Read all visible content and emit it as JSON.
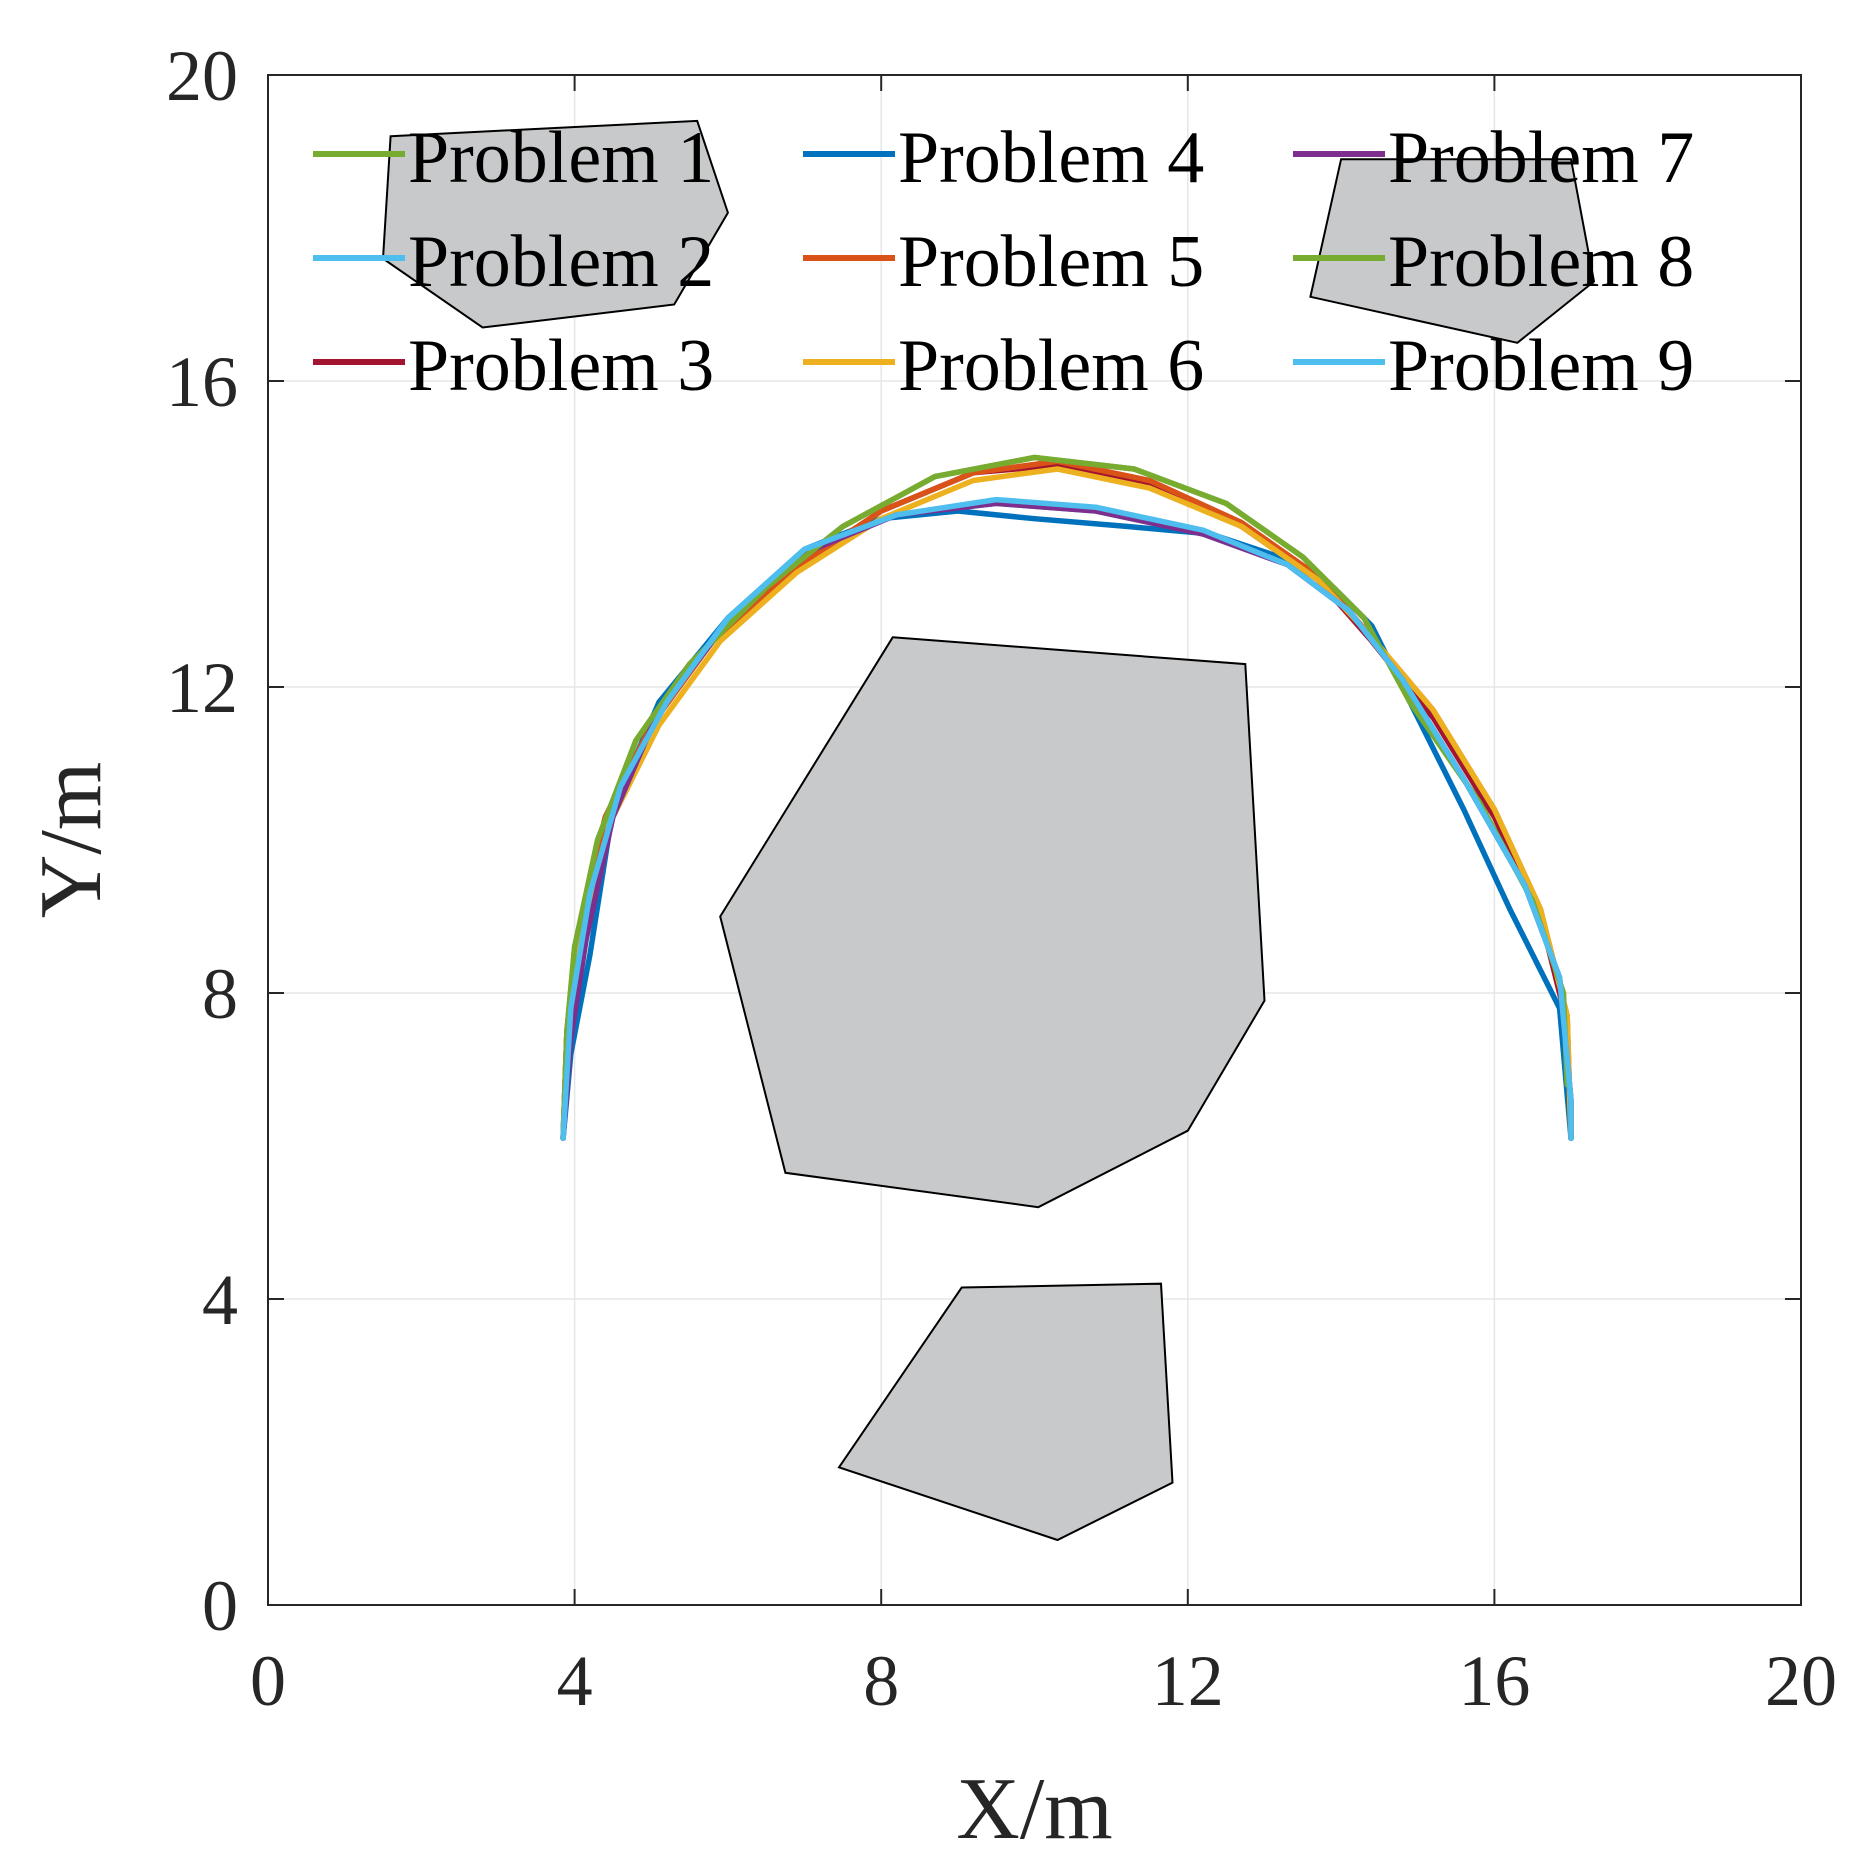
{
  "chart_data": {
    "type": "line",
    "xlabel": "X/m",
    "ylabel": "Y/m",
    "xlim": [
      0,
      20
    ],
    "ylim": [
      0,
      20
    ],
    "xticks": [
      "0",
      "4",
      "8",
      "12",
      "16",
      "20"
    ],
    "yticks": [
      "0",
      "4",
      "8",
      "12",
      "16",
      "20"
    ],
    "grid": true,
    "legend_placement": "top, 3 columns",
    "obstacles": [
      {
        "name": "obstacle-top-left",
        "color": "#c8c9ca",
        "points": [
          [
            1.6,
            19.2
          ],
          [
            5.6,
            19.4
          ],
          [
            6.0,
            18.2
          ],
          [
            5.3,
            17.0
          ],
          [
            2.8,
            16.7
          ],
          [
            1.5,
            17.6
          ]
        ]
      },
      {
        "name": "obstacle-top-right",
        "color": "#c8c9ca",
        "points": [
          [
            14.0,
            18.9
          ],
          [
            17.0,
            18.9
          ],
          [
            17.3,
            17.3
          ],
          [
            16.3,
            16.5
          ],
          [
            13.6,
            17.1
          ]
        ]
      },
      {
        "name": "obstacle-center",
        "color": "#c8c9ca",
        "points": [
          [
            8.15,
            12.65
          ],
          [
            12.75,
            12.3
          ],
          [
            13.0,
            7.9
          ],
          [
            12.0,
            6.2
          ],
          [
            10.05,
            5.2
          ],
          [
            6.75,
            5.65
          ],
          [
            5.9,
            9.0
          ]
        ]
      },
      {
        "name": "obstacle-bottom",
        "color": "#c8c9ca",
        "points": [
          [
            9.05,
            4.15
          ],
          [
            11.65,
            4.2
          ],
          [
            11.8,
            1.6
          ],
          [
            10.3,
            0.85
          ],
          [
            7.45,
            1.8
          ]
        ]
      }
    ],
    "series": [
      {
        "name": "Problem 1",
        "color": "#77ac30",
        "points": [
          [
            3.85,
            6.1
          ],
          [
            3.9,
            7.5
          ],
          [
            4.0,
            8.6
          ],
          [
            4.3,
            10.0
          ],
          [
            4.8,
            11.3
          ],
          [
            5.5,
            12.3
          ],
          [
            6.5,
            13.3
          ],
          [
            7.5,
            14.1
          ],
          [
            8.7,
            14.75
          ],
          [
            10.0,
            15.0
          ],
          [
            11.3,
            14.85
          ],
          [
            12.5,
            14.4
          ],
          [
            13.5,
            13.7
          ],
          [
            14.3,
            12.9
          ],
          [
            14.9,
            11.8
          ],
          [
            15.8,
            10.5
          ],
          [
            16.5,
            9.2
          ],
          [
            16.9,
            8.0
          ],
          [
            16.95,
            6.8
          ]
        ]
      },
      {
        "name": "Problem 2",
        "color": "#4dbeee",
        "points": [
          [
            3.85,
            6.1
          ],
          [
            3.95,
            7.8
          ],
          [
            4.2,
            9.3
          ],
          [
            4.6,
            10.7
          ],
          [
            5.2,
            11.8
          ],
          [
            6.0,
            12.9
          ],
          [
            7.0,
            13.8
          ],
          [
            8.2,
            14.25
          ],
          [
            9.5,
            14.4
          ],
          [
            10.8,
            14.3
          ],
          [
            12.2,
            14.0
          ],
          [
            13.3,
            13.6
          ],
          [
            14.1,
            13.0
          ],
          [
            14.8,
            12.1
          ],
          [
            15.6,
            10.8
          ],
          [
            16.4,
            9.4
          ],
          [
            16.85,
            8.2
          ],
          [
            17.0,
            6.6
          ],
          [
            17.0,
            6.1
          ]
        ]
      },
      {
        "name": "Problem 3",
        "color": "#a2142f",
        "points": [
          [
            3.85,
            6.1
          ],
          [
            3.9,
            7.5
          ],
          [
            4.05,
            8.8
          ],
          [
            4.4,
            10.3
          ],
          [
            5.0,
            11.5
          ],
          [
            5.8,
            12.6
          ],
          [
            6.8,
            13.5
          ],
          [
            8.0,
            14.3
          ],
          [
            9.2,
            14.8
          ],
          [
            10.3,
            14.9
          ],
          [
            11.5,
            14.65
          ],
          [
            12.7,
            14.1
          ],
          [
            13.7,
            13.4
          ],
          [
            14.4,
            12.6
          ],
          [
            15.2,
            11.6
          ],
          [
            16.0,
            10.3
          ],
          [
            16.6,
            9.0
          ],
          [
            16.95,
            7.6
          ],
          [
            17.0,
            6.1
          ]
        ]
      },
      {
        "name": "Problem 4",
        "color": "#0072bd",
        "points": [
          [
            3.85,
            6.1
          ],
          [
            3.95,
            7.2
          ],
          [
            4.2,
            8.5
          ],
          [
            4.5,
            10.4
          ],
          [
            5.1,
            11.8
          ],
          [
            6.0,
            12.9
          ],
          [
            7.0,
            13.8
          ],
          [
            8.0,
            14.2
          ],
          [
            9.0,
            14.3
          ],
          [
            10.0,
            14.2
          ],
          [
            11.2,
            14.1
          ],
          [
            12.3,
            14.0
          ],
          [
            13.2,
            13.7
          ],
          [
            13.9,
            13.3
          ],
          [
            14.4,
            12.8
          ],
          [
            14.9,
            11.8
          ],
          [
            15.6,
            10.4
          ],
          [
            16.2,
            9.1
          ],
          [
            16.85,
            7.8
          ],
          [
            17.0,
            6.1
          ]
        ]
      },
      {
        "name": "Problem 5",
        "color": "#d95319",
        "points": [
          [
            3.85,
            6.1
          ],
          [
            3.9,
            7.5
          ],
          [
            4.05,
            8.8
          ],
          [
            4.4,
            10.3
          ],
          [
            5.0,
            11.5
          ],
          [
            5.8,
            12.6
          ],
          [
            6.8,
            13.5
          ],
          [
            8.0,
            14.3
          ],
          [
            9.2,
            14.8
          ],
          [
            10.3,
            14.95
          ],
          [
            11.5,
            14.7
          ],
          [
            12.7,
            14.15
          ],
          [
            13.7,
            13.45
          ],
          [
            14.4,
            12.65
          ],
          [
            15.2,
            11.7
          ],
          [
            16.0,
            10.4
          ],
          [
            16.6,
            9.1
          ],
          [
            16.95,
            7.7
          ],
          [
            17.0,
            6.1
          ]
        ]
      },
      {
        "name": "Problem 6",
        "color": "#edb120",
        "points": [
          [
            3.85,
            6.1
          ],
          [
            3.9,
            7.5
          ],
          [
            4.1,
            8.8
          ],
          [
            4.5,
            10.3
          ],
          [
            5.1,
            11.5
          ],
          [
            5.9,
            12.6
          ],
          [
            6.9,
            13.5
          ],
          [
            8.0,
            14.2
          ],
          [
            9.2,
            14.7
          ],
          [
            10.3,
            14.85
          ],
          [
            11.5,
            14.6
          ],
          [
            12.7,
            14.1
          ],
          [
            13.7,
            13.4
          ],
          [
            14.4,
            12.65
          ],
          [
            15.2,
            11.7
          ],
          [
            16.0,
            10.4
          ],
          [
            16.6,
            9.1
          ],
          [
            16.95,
            7.7
          ],
          [
            17.0,
            6.1
          ]
        ]
      },
      {
        "name": "Problem 7",
        "color": "#7e2f8e",
        "points": [
          [
            3.85,
            6.1
          ],
          [
            3.95,
            7.4
          ],
          [
            4.15,
            8.7
          ],
          [
            4.5,
            10.3
          ],
          [
            5.1,
            11.7
          ],
          [
            6.0,
            12.85
          ],
          [
            7.0,
            13.75
          ],
          [
            8.2,
            14.25
          ],
          [
            9.5,
            14.4
          ],
          [
            10.8,
            14.3
          ],
          [
            12.2,
            14.0
          ],
          [
            13.3,
            13.6
          ],
          [
            14.1,
            13.0
          ],
          [
            14.8,
            12.1
          ],
          [
            15.6,
            10.8
          ],
          [
            16.4,
            9.4
          ],
          [
            16.85,
            8.2
          ],
          [
            17.0,
            6.6
          ],
          [
            17.0,
            6.1
          ]
        ]
      },
      {
        "name": "Problem 8",
        "color": "#77ac30",
        "points": [
          [
            3.85,
            6.1
          ],
          [
            3.9,
            7.5
          ],
          [
            4.0,
            8.6
          ],
          [
            4.3,
            10.0
          ],
          [
            4.8,
            11.3
          ],
          [
            5.5,
            12.3
          ],
          [
            6.5,
            13.3
          ],
          [
            7.5,
            14.1
          ],
          [
            8.7,
            14.75
          ],
          [
            10.0,
            15.0
          ],
          [
            11.3,
            14.85
          ],
          [
            12.5,
            14.4
          ],
          [
            13.5,
            13.7
          ],
          [
            14.3,
            12.9
          ],
          [
            14.9,
            11.8
          ],
          [
            15.8,
            10.5
          ],
          [
            16.5,
            9.2
          ],
          [
            16.9,
            8.0
          ],
          [
            16.95,
            6.8
          ]
        ]
      },
      {
        "name": "Problem 9",
        "color": "#4dbeee",
        "points": [
          [
            3.85,
            6.1
          ],
          [
            3.95,
            7.8
          ],
          [
            4.2,
            9.3
          ],
          [
            4.6,
            10.7
          ],
          [
            5.2,
            11.8
          ],
          [
            6.0,
            12.9
          ],
          [
            7.0,
            13.8
          ],
          [
            8.2,
            14.25
          ],
          [
            9.5,
            14.45
          ],
          [
            10.8,
            14.35
          ],
          [
            12.2,
            14.05
          ],
          [
            13.3,
            13.6
          ],
          [
            14.1,
            13.0
          ],
          [
            14.8,
            12.1
          ],
          [
            15.6,
            10.8
          ],
          [
            16.4,
            9.4
          ],
          [
            16.85,
            8.2
          ],
          [
            17.0,
            6.6
          ],
          [
            17.0,
            6.1
          ]
        ]
      }
    ]
  }
}
